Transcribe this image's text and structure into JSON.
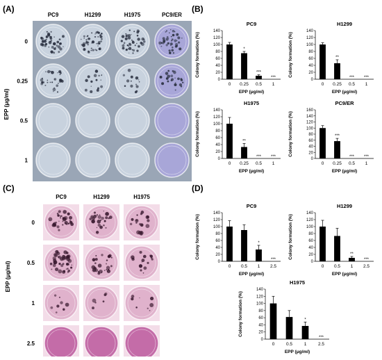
{
  "panels": {
    "a": "(A)",
    "b": "(B)",
    "c": "(C)",
    "d": "(D)"
  },
  "panel_a": {
    "columns": [
      "PC9",
      "H1299",
      "H1975",
      "PC9/ER"
    ],
    "rows": [
      "0",
      "0.25",
      "0.5",
      "1"
    ],
    "row_axis_title": "EPP (μg/ml)",
    "colors": {
      "bg": "#9aa6b6",
      "dish": "#c8d2de",
      "dish_er": "#a8a6d8",
      "colony": "#2a3040"
    },
    "colony_level": [
      [
        0.9,
        0.85,
        0.9,
        0.75
      ],
      [
        0.55,
        0.3,
        0.25,
        0.45
      ],
      [
        0.0,
        0.0,
        0.0,
        0.0
      ],
      [
        0.0,
        0.0,
        0.0,
        0.0
      ]
    ]
  },
  "panel_c": {
    "columns": [
      "PC9",
      "H1299",
      "H1975"
    ],
    "rows": [
      "0",
      "0.5",
      "1",
      "2.5"
    ],
    "row_axis_title": "EPP (μg/ml)",
    "colors": {
      "dish": "#e0b2cc",
      "dish_deep": "#c46ca8",
      "colony": "#3a1a30"
    },
    "colony_level": [
      [
        0.6,
        0.45,
        0.35
      ],
      [
        0.75,
        0.5,
        0.3
      ],
      [
        0.15,
        0.1,
        0.15
      ],
      [
        0.0,
        0.0,
        0.0
      ]
    ]
  },
  "chart_data": [
    {
      "type": "bar",
      "panel": "B",
      "title": "PC9",
      "xlabel": "EPP (μg/ml)",
      "ylabel": "Colony formation (%)",
      "categories": [
        "0",
        "0.25",
        "0.5",
        "1"
      ],
      "values": [
        100,
        75,
        10,
        0
      ],
      "errors": [
        6,
        5,
        3,
        0
      ],
      "annotations": [
        "",
        "*",
        "***",
        "***"
      ],
      "ylim": [
        0,
        140
      ],
      "yticks": [
        0,
        20,
        40,
        60,
        80,
        100,
        120,
        140
      ]
    },
    {
      "type": "bar",
      "panel": "B",
      "title": "H1299",
      "xlabel": "EPP (μg/ml)",
      "ylabel": "Colony formation (%)",
      "categories": [
        "0",
        "0.25",
        "0.5",
        "1"
      ],
      "values": [
        100,
        46,
        0,
        0
      ],
      "errors": [
        5,
        10,
        0,
        0
      ],
      "annotations": [
        "",
        "**",
        "***",
        "***"
      ],
      "ylim": [
        0,
        140
      ],
      "yticks": [
        0,
        20,
        40,
        60,
        80,
        100,
        120,
        140
      ]
    },
    {
      "type": "bar",
      "panel": "B",
      "title": "H1975",
      "xlabel": "EPP (μg/ml)",
      "ylabel": "Colony formation (%)",
      "categories": [
        "0",
        "0.25",
        "0.5",
        "1"
      ],
      "values": [
        100,
        33,
        0,
        0
      ],
      "errors": [
        18,
        10,
        0,
        0
      ],
      "annotations": [
        "",
        "**",
        "***",
        "***"
      ],
      "ylim": [
        0,
        140
      ],
      "yticks": [
        0,
        20,
        40,
        60,
        80,
        100,
        120,
        140
      ]
    },
    {
      "type": "bar",
      "panel": "B",
      "title": "PC9/ER",
      "xlabel": "EPP (μg/ml)",
      "ylabel": "Colony formation (%)",
      "categories": [
        "0",
        "0.25",
        "0.5",
        "1"
      ],
      "values": [
        100,
        57,
        0,
        0
      ],
      "errors": [
        8,
        9,
        0,
        0
      ],
      "annotations": [
        "",
        "***",
        "***",
        "***"
      ],
      "ylim": [
        0,
        160
      ],
      "yticks": [
        0,
        20,
        40,
        60,
        80,
        100,
        120,
        140,
        160
      ]
    },
    {
      "type": "bar",
      "panel": "D",
      "title": "PC9",
      "xlabel": "EPP (μg/ml)",
      "ylabel": "Colony formation (%)",
      "categories": [
        "0",
        "0.5",
        "1",
        "2.5"
      ],
      "values": [
        100,
        90,
        34,
        0
      ],
      "errors": [
        17,
        15,
        12,
        0
      ],
      "annotations": [
        "",
        "",
        "*",
        "***"
      ],
      "ylim": [
        0,
        140
      ],
      "yticks": [
        0,
        20,
        40,
        60,
        80,
        100,
        120,
        140
      ]
    },
    {
      "type": "bar",
      "panel": "D",
      "title": "H1299",
      "xlabel": "EPP (μg/ml)",
      "ylabel": "Colony formation (%)",
      "categories": [
        "0",
        "0.5",
        "1",
        "2.5"
      ],
      "values": [
        100,
        73,
        10,
        0
      ],
      "errors": [
        18,
        22,
        4,
        0
      ],
      "annotations": [
        "",
        "",
        "**",
        "***"
      ],
      "ylim": [
        0,
        140
      ],
      "yticks": [
        0,
        20,
        40,
        60,
        80,
        100,
        120,
        140
      ]
    },
    {
      "type": "bar",
      "panel": "D",
      "title": "H1975",
      "xlabel": "EPP (μg/ml)",
      "ylabel": "Colony formation (%)",
      "categories": [
        "0",
        "0.5",
        "1",
        "2.5"
      ],
      "values": [
        100,
        62,
        37,
        0
      ],
      "errors": [
        20,
        18,
        11,
        0
      ],
      "annotations": [
        "",
        "",
        "*",
        "***"
      ],
      "ylim": [
        0,
        140
      ],
      "yticks": [
        0,
        20,
        40,
        60,
        80,
        100,
        120,
        140
      ]
    }
  ]
}
